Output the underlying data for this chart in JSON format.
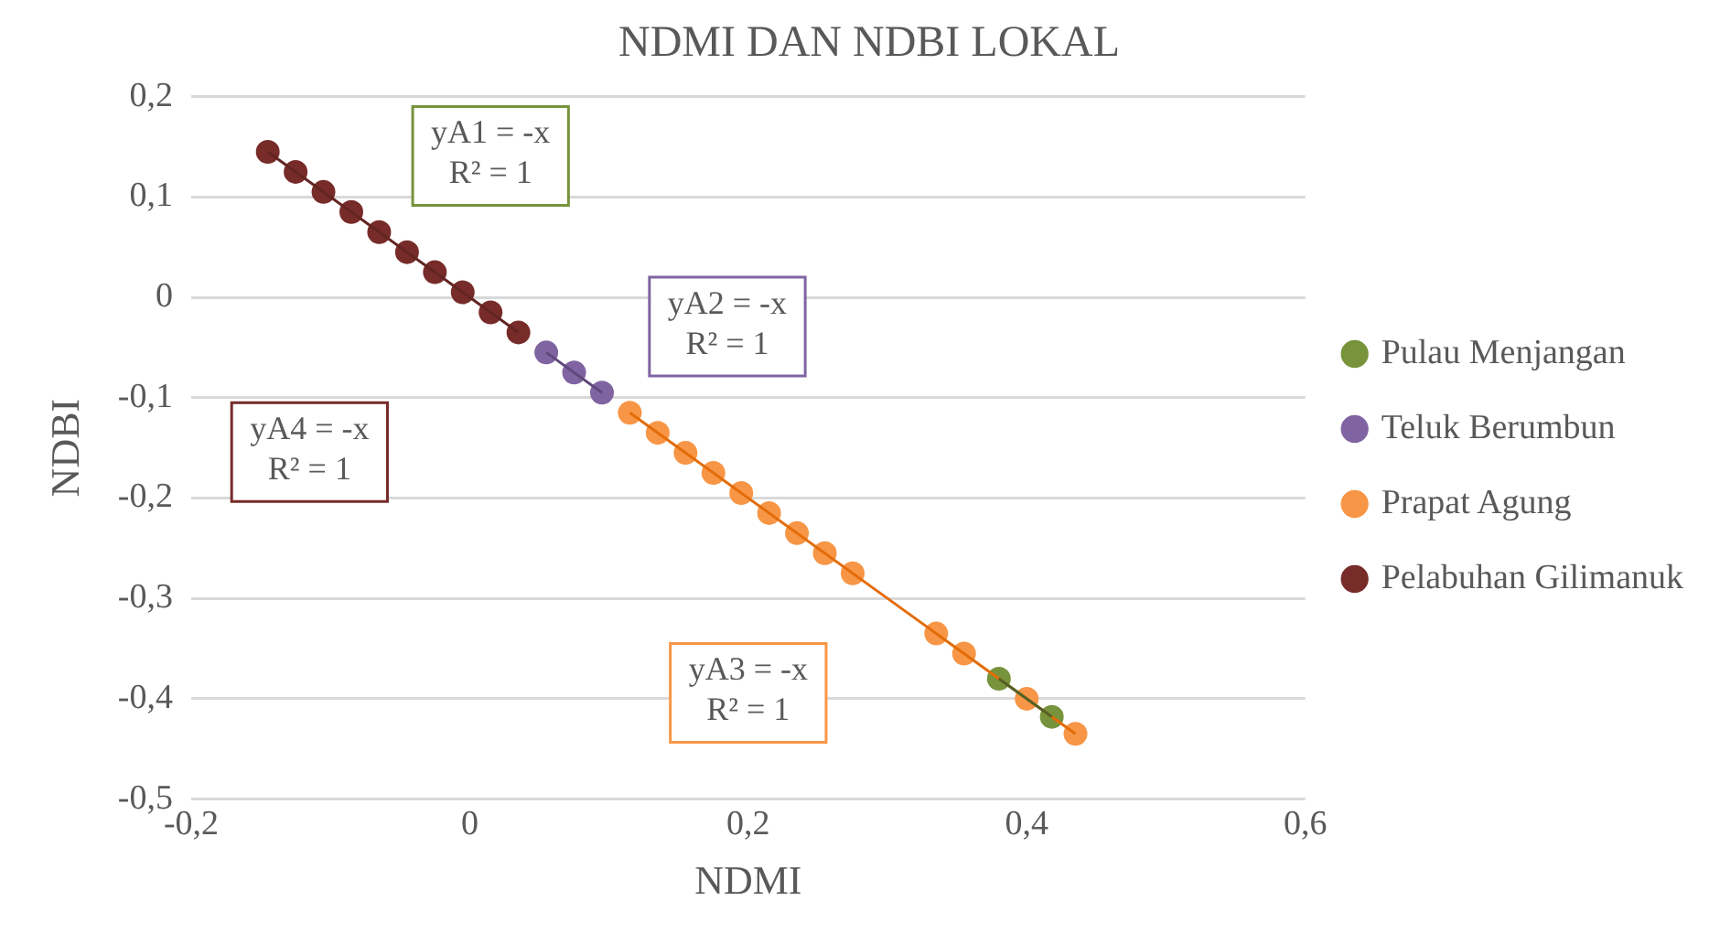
{
  "chart_data": {
    "type": "scatter",
    "title": "NDMI DAN NDBI LOKAL",
    "xlabel": "NDMI",
    "ylabel": "NDBI",
    "xlim": [
      -0.2,
      0.6
    ],
    "xticks": [
      {
        "value": -0.2,
        "label": "-0,2"
      },
      {
        "value": 0,
        "label": "0"
      },
      {
        "value": 0.2,
        "label": "0,2"
      },
      {
        "value": 0.4,
        "label": "0,4"
      },
      {
        "value": 0.6,
        "label": "0,6"
      }
    ],
    "ylim": [
      -0.5,
      0.2
    ],
    "yticks": [
      {
        "value": -0.5,
        "label": "-0,5"
      },
      {
        "value": -0.4,
        "label": "-0,4"
      },
      {
        "value": -0.3,
        "label": "-0,3"
      },
      {
        "value": -0.2,
        "label": "-0,2"
      },
      {
        "value": -0.1,
        "label": "-0,1"
      },
      {
        "value": 0,
        "label": "0"
      },
      {
        "value": 0.1,
        "label": "0,1"
      },
      {
        "value": 0.2,
        "label": "0,2"
      }
    ],
    "grid": "y",
    "legend": "right",
    "marker": "circle",
    "annotations": [
      "yA1 = -x\nR² = 1",
      "yA2 = -x\nR² = 1",
      "yA3 = -x\nR² = 1",
      "yA4 = -x\nR² = 1"
    ],
    "series": [
      {
        "name": "Pulau Menjangan",
        "color": "#77933c",
        "x": [
          0.38,
          0.418
        ],
        "values": [
          -0.38,
          -0.418
        ]
      },
      {
        "name": "Teluk Berumbun",
        "color": "#8064a2",
        "x": [
          0.055,
          0.075,
          0.095
        ],
        "values": [
          -0.055,
          -0.075,
          -0.095
        ]
      },
      {
        "name": "Prapat Agung",
        "color": "#f79646",
        "x": [
          0.115,
          0.135,
          0.155,
          0.175,
          0.195,
          0.215,
          0.235,
          0.255,
          0.275,
          0.335,
          0.355,
          0.4,
          0.435
        ],
        "values": [
          -0.115,
          -0.135,
          -0.155,
          -0.175,
          -0.195,
          -0.215,
          -0.235,
          -0.255,
          -0.275,
          -0.335,
          -0.355,
          -0.4,
          -0.435
        ]
      },
      {
        "name": "Pelabuhan Gilimanuk",
        "color": "#772c2a",
        "x": [
          -0.145,
          -0.125,
          -0.105,
          -0.085,
          -0.065,
          -0.045,
          -0.025,
          -0.005,
          0.015,
          0.035
        ],
        "values": [
          0.145,
          0.125,
          0.105,
          0.085,
          0.065,
          0.045,
          0.025,
          0.005,
          -0.015,
          -0.035
        ]
      },
      {
        "type": "line",
        "marker": "none",
        "color": "#4f6228",
        "x": [
          0.38,
          0.418
        ],
        "values": [
          -0.38,
          -0.418
        ]
      },
      {
        "type": "line",
        "marker": "none",
        "color": "#5f497a",
        "x": [
          0.055,
          0.095
        ],
        "values": [
          -0.055,
          -0.095
        ]
      },
      {
        "type": "line",
        "marker": "none",
        "color": "#e36c09",
        "x": [
          0.115,
          0.435
        ],
        "values": [
          -0.115,
          -0.435
        ]
      },
      {
        "type": "line",
        "marker": "none",
        "color": "#632523",
        "x": [
          -0.145,
          0.035
        ],
        "values": [
          0.145,
          -0.035
        ]
      }
    ]
  }
}
